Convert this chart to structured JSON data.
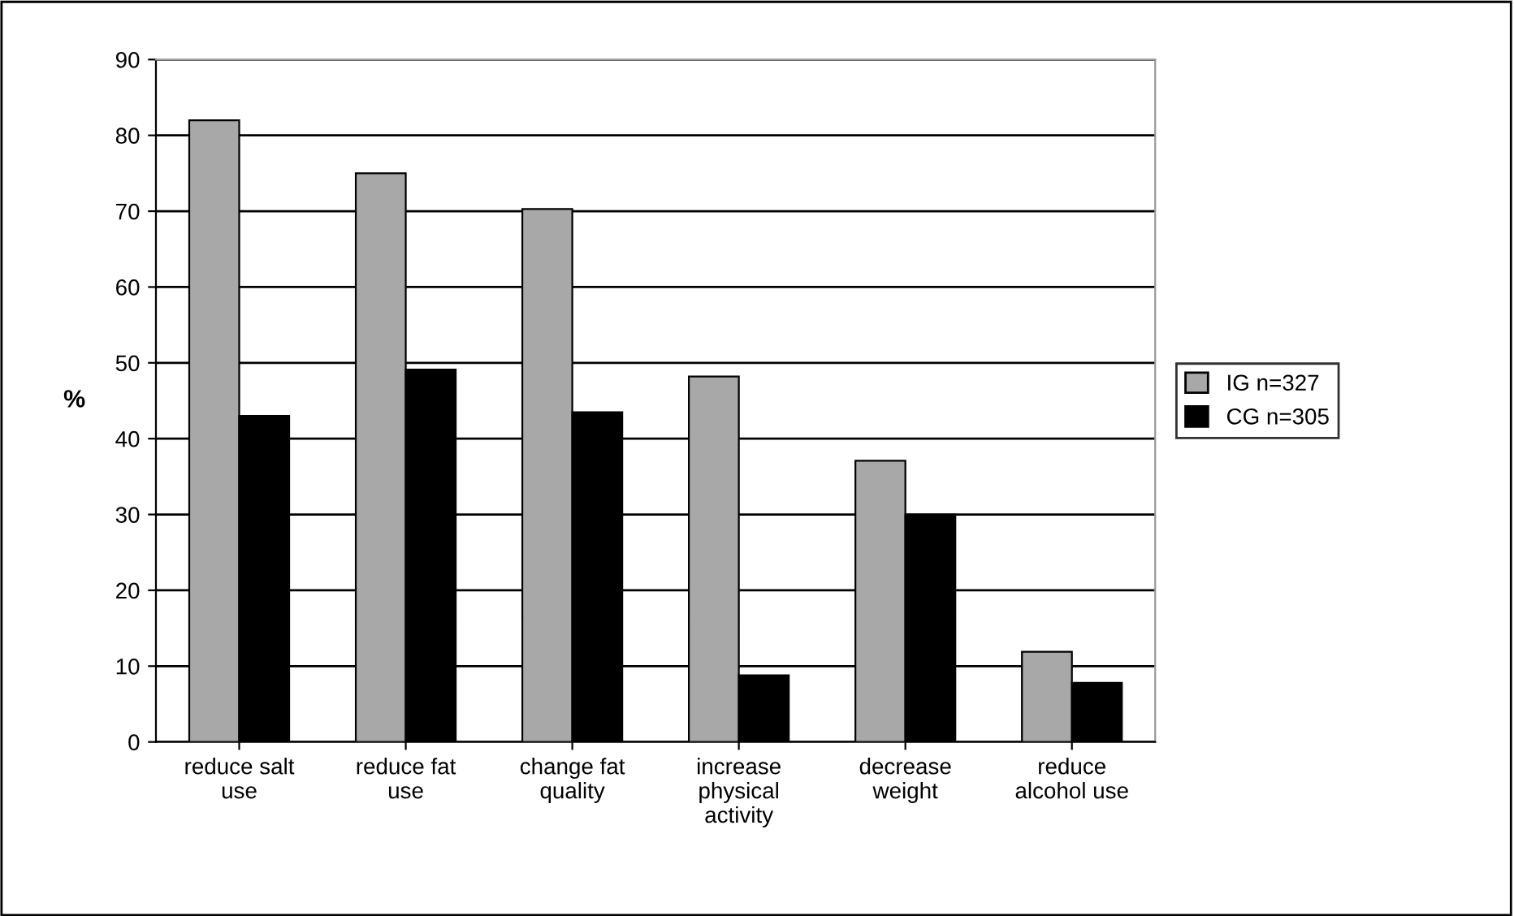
{
  "chart_data": {
    "type": "bar",
    "ylabel": "%",
    "categories": [
      "reduce salt\nuse",
      "reduce fat\nuse",
      "change fat\nquality",
      "increase\nphysical\nactivity",
      "decrease\nweight",
      "reduce\nalcohol use"
    ],
    "series": [
      {
        "name": "IG n=327",
        "color": "#a8a8a8",
        "values": [
          82,
          75,
          70.3,
          48.2,
          37.1,
          11.9
        ]
      },
      {
        "name": "CG n=305",
        "color": "#000000",
        "values": [
          43,
          49.1,
          43.5,
          8.8,
          30,
          7.8
        ]
      }
    ],
    "ylim": [
      0,
      90
    ],
    "yticks": [
      0,
      10,
      20,
      30,
      40,
      50,
      60,
      70,
      80,
      90
    ],
    "grid": "y",
    "legend": "right"
  }
}
